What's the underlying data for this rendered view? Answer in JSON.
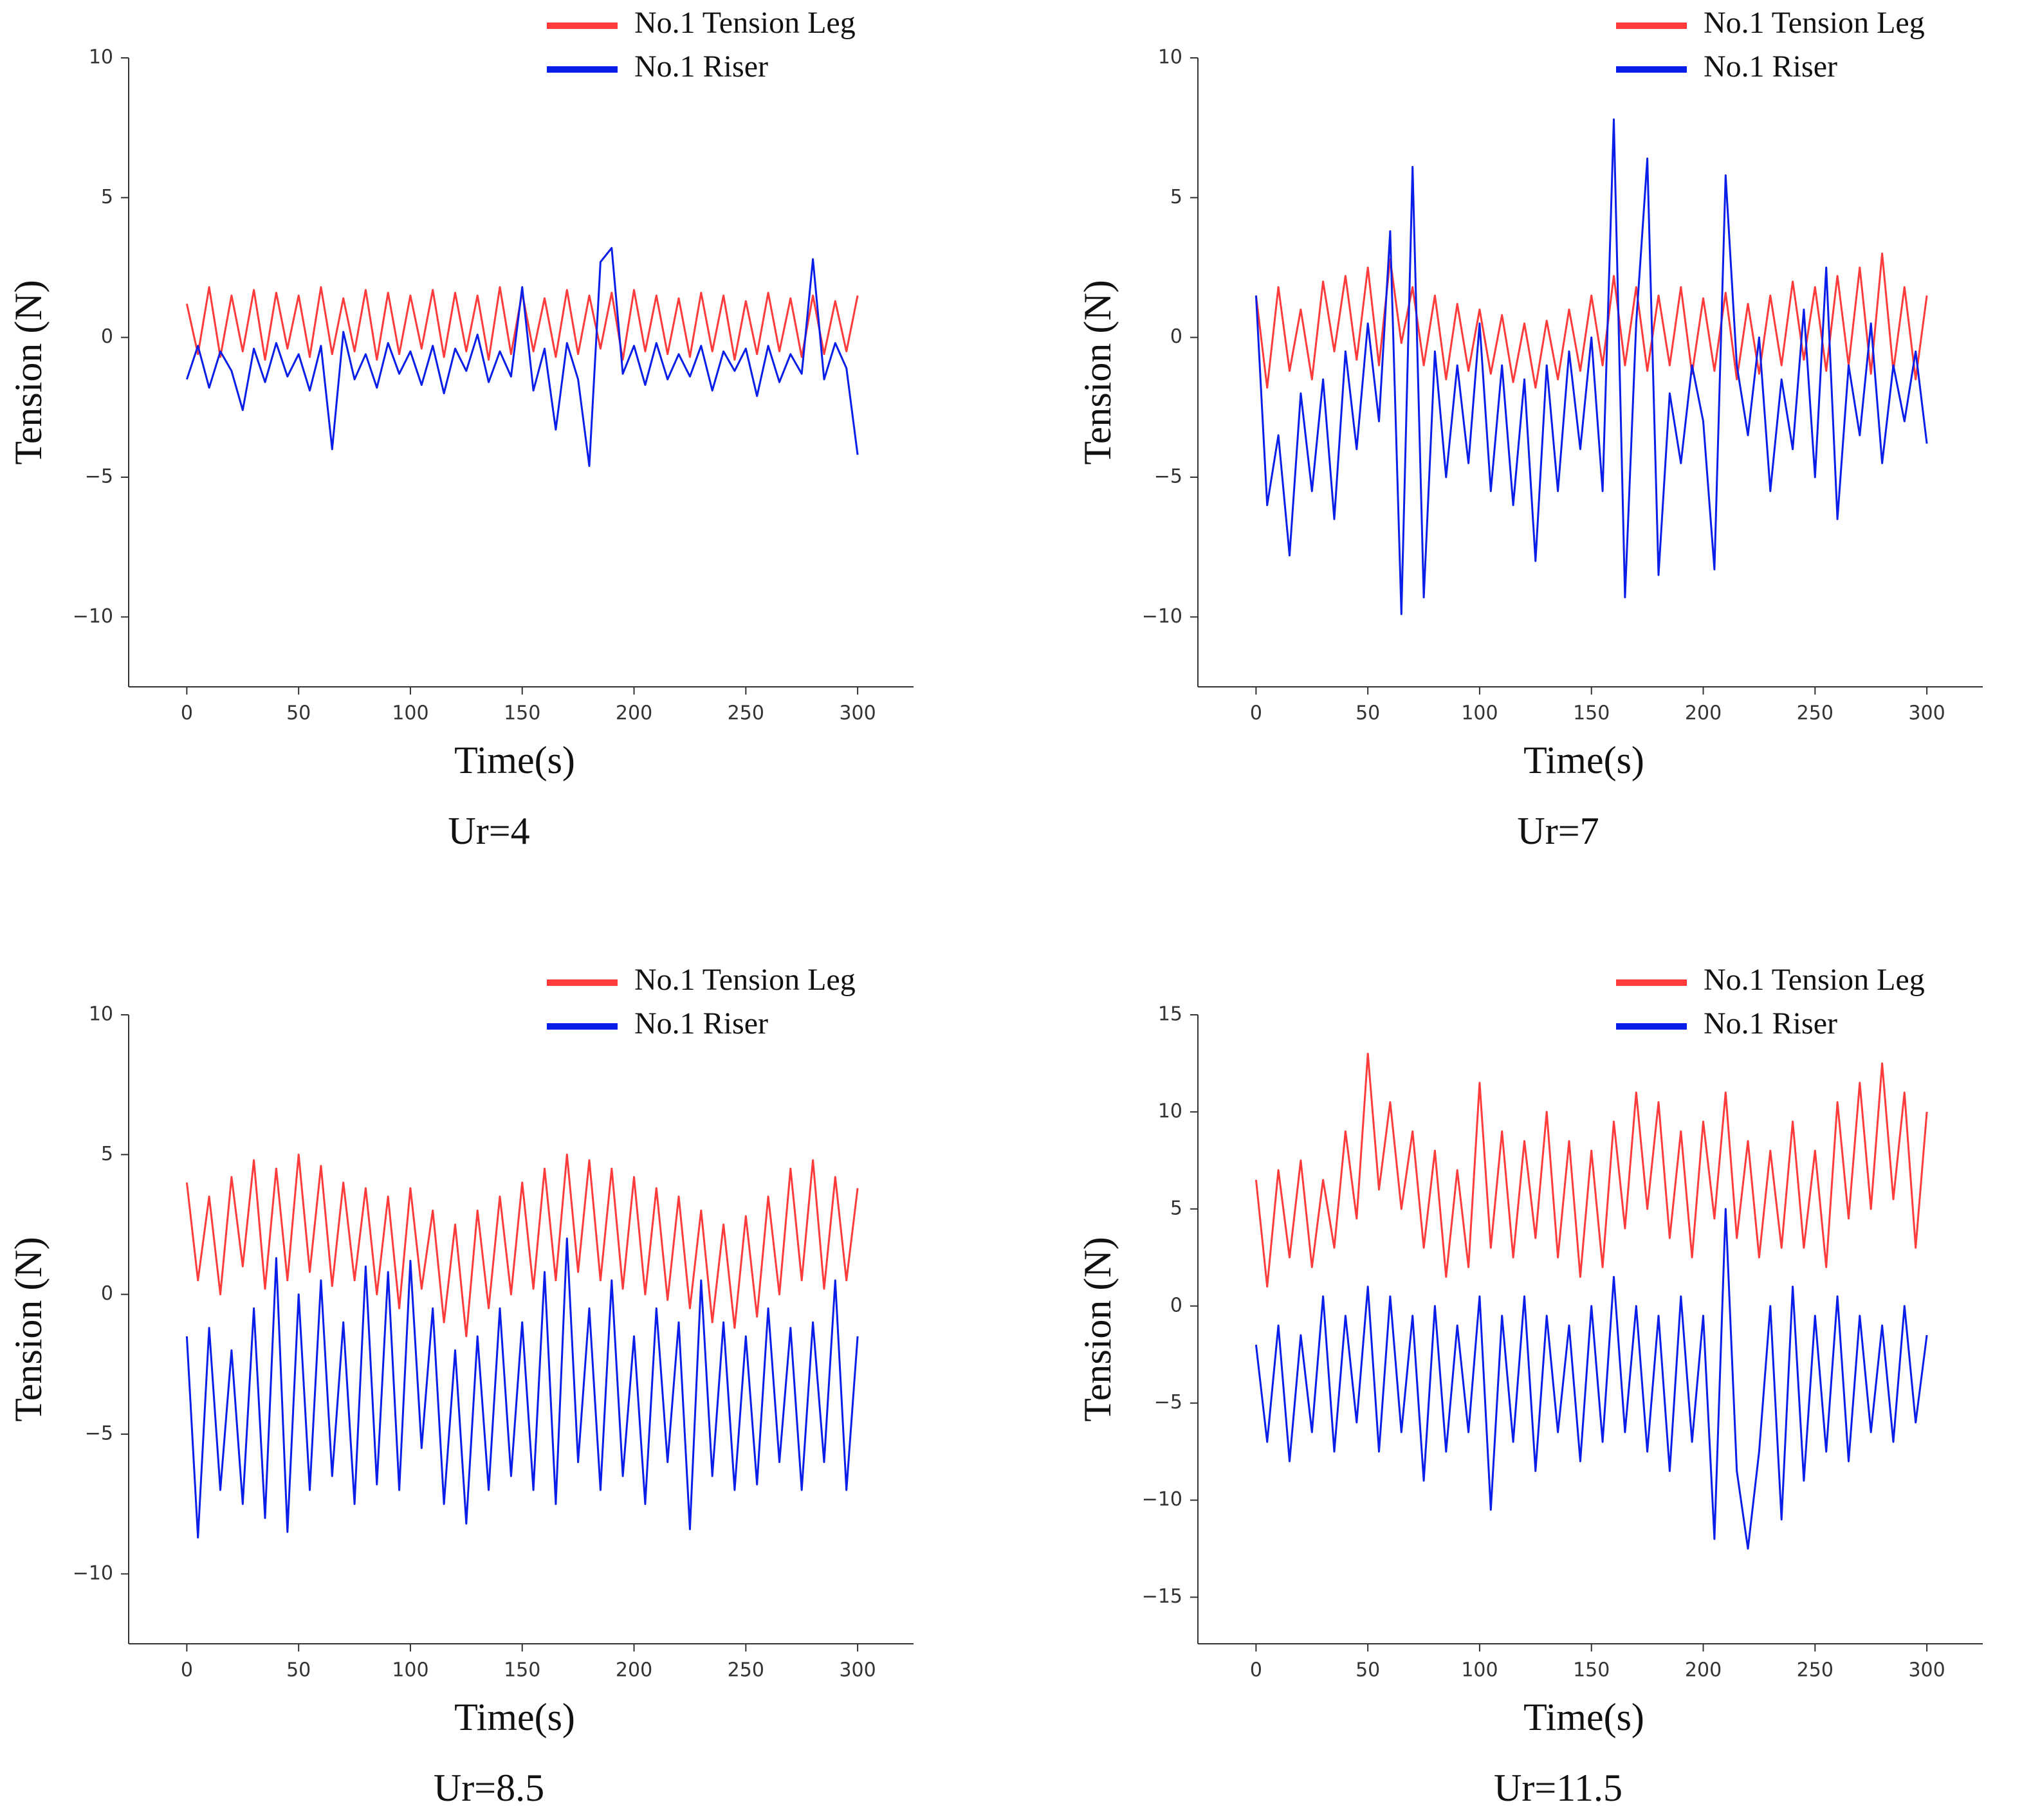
{
  "chart_data": [
    {
      "type": "line",
      "caption": "Ur=4",
      "xlabel": "Time(s)",
      "ylabel": "Tension (N)",
      "legend": "upper right",
      "xlim": [
        -26,
        325
      ],
      "ylim": [
        -12.5,
        10
      ],
      "xticks": [
        0,
        50,
        100,
        150,
        200,
        250,
        300
      ],
      "yticks": [
        {
          "value": -10,
          "label": "−10"
        },
        {
          "value": -5,
          "label": "−5"
        },
        0,
        5,
        10
      ],
      "x": [
        0,
        5,
        10,
        15,
        20,
        25,
        30,
        35,
        40,
        45,
        50,
        55,
        60,
        65,
        70,
        75,
        80,
        85,
        90,
        95,
        100,
        105,
        110,
        115,
        120,
        125,
        130,
        135,
        140,
        145,
        150,
        155,
        160,
        165,
        170,
        175,
        180,
        185,
        190,
        195,
        200,
        205,
        210,
        215,
        220,
        225,
        230,
        235,
        240,
        245,
        250,
        255,
        260,
        265,
        270,
        275,
        280,
        285,
        290,
        295,
        300
      ],
      "series": [
        {
          "name": "No.1 Tension Leg",
          "color": "#ff3b3b",
          "values": [
            1.2,
            -0.6,
            1.8,
            -0.7,
            1.5,
            -0.5,
            1.7,
            -0.8,
            1.6,
            -0.4,
            1.5,
            -0.7,
            1.8,
            -0.6,
            1.4,
            -0.5,
            1.7,
            -0.8,
            1.6,
            -0.6,
            1.5,
            -0.4,
            1.7,
            -0.7,
            1.6,
            -0.5,
            1.5,
            -0.8,
            1.8,
            -0.6,
            1.6,
            -0.5,
            1.4,
            -0.7,
            1.7,
            -0.6,
            1.5,
            -0.4,
            1.6,
            -0.8,
            1.7,
            -0.5,
            1.5,
            -0.6,
            1.4,
            -0.7,
            1.6,
            -0.5,
            1.5,
            -0.8,
            1.3,
            -0.6,
            1.6,
            -0.5,
            1.4,
            -0.7,
            1.5,
            -0.6,
            1.3,
            -0.5,
            1.5
          ]
        },
        {
          "name": "No.1 Riser",
          "color": "#0a1eea",
          "values": [
            -1.5,
            -0.3,
            -1.8,
            -0.5,
            -1.2,
            -2.6,
            -0.4,
            -1.6,
            -0.2,
            -1.4,
            -0.6,
            -1.9,
            -0.3,
            -4.0,
            0.2,
            -1.5,
            -0.6,
            -1.8,
            -0.2,
            -1.3,
            -0.5,
            -1.7,
            -0.3,
            -2.0,
            -0.4,
            -1.2,
            0.1,
            -1.6,
            -0.5,
            -1.4,
            1.8,
            -1.9,
            -0.4,
            -3.3,
            -0.2,
            -1.5,
            -4.6,
            2.7,
            3.2,
            -1.3,
            -0.3,
            -1.7,
            -0.2,
            -1.5,
            -0.6,
            -1.4,
            -0.3,
            -1.9,
            -0.5,
            -1.2,
            -0.4,
            -2.1,
            -0.3,
            -1.6,
            -0.6,
            -1.3,
            2.8,
            -1.5,
            -0.2,
            -1.1,
            -4.2
          ]
        }
      ]
    },
    {
      "type": "line",
      "caption": "Ur=7",
      "xlabel": "Time(s)",
      "ylabel": "Tension (N)",
      "legend": "upper right",
      "xlim": [
        -26,
        325
      ],
      "ylim": [
        -12.5,
        10
      ],
      "xticks": [
        0,
        50,
        100,
        150,
        200,
        250,
        300
      ],
      "yticks": [
        {
          "value": -10,
          "label": "−10"
        },
        {
          "value": -5,
          "label": "−5"
        },
        0,
        5,
        10
      ],
      "x": [
        0,
        5,
        10,
        15,
        20,
        25,
        30,
        35,
        40,
        45,
        50,
        55,
        60,
        65,
        70,
        75,
        80,
        85,
        90,
        95,
        100,
        105,
        110,
        115,
        120,
        125,
        130,
        135,
        140,
        145,
        150,
        155,
        160,
        165,
        170,
        175,
        180,
        185,
        190,
        195,
        200,
        205,
        210,
        215,
        220,
        225,
        230,
        235,
        240,
        245,
        250,
        255,
        260,
        265,
        270,
        275,
        280,
        285,
        290,
        295,
        300
      ],
      "series": [
        {
          "name": "No.1 Tension Leg",
          "color": "#ff3b3b",
          "values": [
            1.5,
            -1.8,
            1.8,
            -1.2,
            1.0,
            -1.5,
            2.0,
            -0.5,
            2.2,
            -0.8,
            2.5,
            -1.0,
            2.8,
            -0.2,
            1.8,
            -1.0,
            1.5,
            -1.5,
            1.2,
            -1.2,
            1.0,
            -1.3,
            0.8,
            -1.6,
            0.5,
            -1.8,
            0.6,
            -1.5,
            1.0,
            -1.2,
            1.5,
            -1.0,
            2.2,
            -1.0,
            1.8,
            -1.2,
            1.5,
            -1.0,
            1.8,
            -1.3,
            1.4,
            -1.2,
            1.6,
            -1.5,
            1.2,
            -1.3,
            1.5,
            -1.0,
            2.0,
            -0.8,
            1.8,
            -1.2,
            2.2,
            -1.0,
            2.5,
            -1.3,
            3.0,
            -1.2,
            1.8,
            -1.5,
            1.5
          ]
        },
        {
          "name": "No.1 Riser",
          "color": "#0a1eea",
          "values": [
            1.5,
            -6.0,
            -3.5,
            -7.8,
            -2.0,
            -5.5,
            -1.5,
            -6.5,
            -0.5,
            -4.0,
            0.5,
            -3.0,
            3.8,
            -9.9,
            6.1,
            -9.3,
            -0.5,
            -5.0,
            -1.0,
            -4.5,
            0.5,
            -5.5,
            -1.0,
            -6.0,
            -1.5,
            -8.0,
            -1.0,
            -5.5,
            -0.5,
            -4.0,
            0.0,
            -5.5,
            7.8,
            -9.3,
            0.5,
            6.4,
            -8.5,
            -2.0,
            -4.5,
            -1.0,
            -3.0,
            -8.3,
            5.8,
            -1.0,
            -3.5,
            0.0,
            -5.5,
            -1.5,
            -4.0,
            1.0,
            -5.0,
            2.5,
            -6.5,
            -1.0,
            -3.5,
            0.5,
            -4.5,
            -1.0,
            -3.0,
            -0.5,
            -3.8
          ]
        }
      ]
    },
    {
      "type": "line",
      "caption": "Ur=8.5",
      "xlabel": "Time(s)",
      "ylabel": "Tension (N)",
      "legend": "upper right",
      "xlim": [
        -26,
        325
      ],
      "ylim": [
        -12.5,
        10
      ],
      "xticks": [
        0,
        50,
        100,
        150,
        200,
        250,
        300
      ],
      "yticks": [
        {
          "value": -10,
          "label": "−10"
        },
        {
          "value": -5,
          "label": "−5"
        },
        0,
        5,
        10
      ],
      "x": [
        0,
        5,
        10,
        15,
        20,
        25,
        30,
        35,
        40,
        45,
        50,
        55,
        60,
        65,
        70,
        75,
        80,
        85,
        90,
        95,
        100,
        105,
        110,
        115,
        120,
        125,
        130,
        135,
        140,
        145,
        150,
        155,
        160,
        165,
        170,
        175,
        180,
        185,
        190,
        195,
        200,
        205,
        210,
        215,
        220,
        225,
        230,
        235,
        240,
        245,
        250,
        255,
        260,
        265,
        270,
        275,
        280,
        285,
        290,
        295,
        300
      ],
      "series": [
        {
          "name": "No.1 Tension Leg",
          "color": "#ff3b3b",
          "values": [
            4.0,
            0.5,
            3.5,
            0.0,
            4.2,
            1.0,
            4.8,
            0.2,
            4.5,
            0.5,
            5.0,
            0.8,
            4.6,
            0.3,
            4.0,
            0.5,
            3.8,
            0.0,
            3.5,
            -0.5,
            3.8,
            0.2,
            3.0,
            -1.0,
            2.5,
            -1.5,
            3.0,
            -0.5,
            3.5,
            0.0,
            4.0,
            0.2,
            4.5,
            0.5,
            5.0,
            0.8,
            4.8,
            0.5,
            4.5,
            0.2,
            4.2,
            0.0,
            3.8,
            -0.2,
            3.5,
            -0.5,
            3.0,
            -1.0,
            2.5,
            -1.2,
            2.8,
            -0.8,
            3.5,
            0.0,
            4.5,
            0.5,
            4.8,
            0.2,
            4.2,
            0.5,
            3.8
          ]
        },
        {
          "name": "No.1 Riser",
          "color": "#0a1eea",
          "values": [
            -1.5,
            -8.7,
            -1.2,
            -7.0,
            -2.0,
            -7.5,
            -0.5,
            -8.0,
            1.3,
            -8.5,
            0.0,
            -7.0,
            0.5,
            -6.5,
            -1.0,
            -7.5,
            1.0,
            -6.8,
            0.8,
            -7.0,
            1.2,
            -5.5,
            -0.5,
            -7.5,
            -2.0,
            -8.2,
            -1.5,
            -7.0,
            -0.5,
            -6.5,
            -1.0,
            -7.0,
            0.8,
            -7.5,
            2.0,
            -6.0,
            -0.5,
            -7.0,
            0.5,
            -6.5,
            -1.5,
            -7.5,
            -0.5,
            -6.0,
            -1.0,
            -8.4,
            0.5,
            -6.5,
            -1.0,
            -7.0,
            -1.5,
            -6.8,
            -0.5,
            -6.0,
            -1.2,
            -7.0,
            -1.0,
            -6.0,
            0.5,
            -7.0,
            -1.5
          ]
        }
      ]
    },
    {
      "type": "line",
      "caption": "Ur=11.5",
      "xlabel": "Time(s)",
      "ylabel": "Tension (N)",
      "legend": "upper right",
      "xlim": [
        -26,
        325
      ],
      "ylim": [
        -17.4,
        15
      ],
      "xticks": [
        0,
        50,
        100,
        150,
        200,
        250,
        300
      ],
      "yticks": [
        {
          "value": -15,
          "label": "−15"
        },
        {
          "value": -10,
          "label": "−10"
        },
        {
          "value": -5,
          "label": "−5"
        },
        0,
        5,
        10,
        15
      ],
      "x": [
        0,
        5,
        10,
        15,
        20,
        25,
        30,
        35,
        40,
        45,
        50,
        55,
        60,
        65,
        70,
        75,
        80,
        85,
        90,
        95,
        100,
        105,
        110,
        115,
        120,
        125,
        130,
        135,
        140,
        145,
        150,
        155,
        160,
        165,
        170,
        175,
        180,
        185,
        190,
        195,
        200,
        205,
        210,
        215,
        220,
        225,
        230,
        235,
        240,
        245,
        250,
        255,
        260,
        265,
        270,
        275,
        280,
        285,
        290,
        295,
        300
      ],
      "series": [
        {
          "name": "No.1 Tension Leg",
          "color": "#ff3b3b",
          "values": [
            6.5,
            1.0,
            7.0,
            2.5,
            7.5,
            2.0,
            6.5,
            3.0,
            9.0,
            4.5,
            13.0,
            6.0,
            10.5,
            5.0,
            9.0,
            3.0,
            8.0,
            1.5,
            7.0,
            2.0,
            11.5,
            3.0,
            9.0,
            2.5,
            8.5,
            3.5,
            10.0,
            2.5,
            8.5,
            1.5,
            8.0,
            2.0,
            9.5,
            4.0,
            11.0,
            5.0,
            10.5,
            3.5,
            9.0,
            2.5,
            9.5,
            4.5,
            11.0,
            3.5,
            8.5,
            2.5,
            8.0,
            3.0,
            9.5,
            3.0,
            8.0,
            2.0,
            10.5,
            4.5,
            11.5,
            5.0,
            12.5,
            5.5,
            11.0,
            3.0,
            10.0
          ]
        },
        {
          "name": "No.1 Riser",
          "color": "#0a1eea",
          "values": [
            -2.0,
            -7.0,
            -1.0,
            -8.0,
            -1.5,
            -6.5,
            0.5,
            -7.5,
            -0.5,
            -6.0,
            1.0,
            -7.5,
            0.5,
            -6.5,
            -0.5,
            -9.0,
            0.0,
            -7.5,
            -1.0,
            -6.5,
            0.5,
            -10.5,
            -0.5,
            -7.0,
            0.5,
            -8.5,
            -0.5,
            -6.5,
            -1.0,
            -8.0,
            0.0,
            -7.0,
            1.5,
            -6.5,
            0.0,
            -7.5,
            -0.5,
            -8.5,
            0.5,
            -7.0,
            -0.5,
            -12.0,
            5.0,
            -8.5,
            -12.5,
            -7.5,
            0.0,
            -11.0,
            1.0,
            -9.0,
            -0.5,
            -7.5,
            0.5,
            -8.0,
            -0.5,
            -6.5,
            -1.0,
            -7.0,
            0.0,
            -6.0,
            -1.5
          ]
        }
      ]
    }
  ]
}
